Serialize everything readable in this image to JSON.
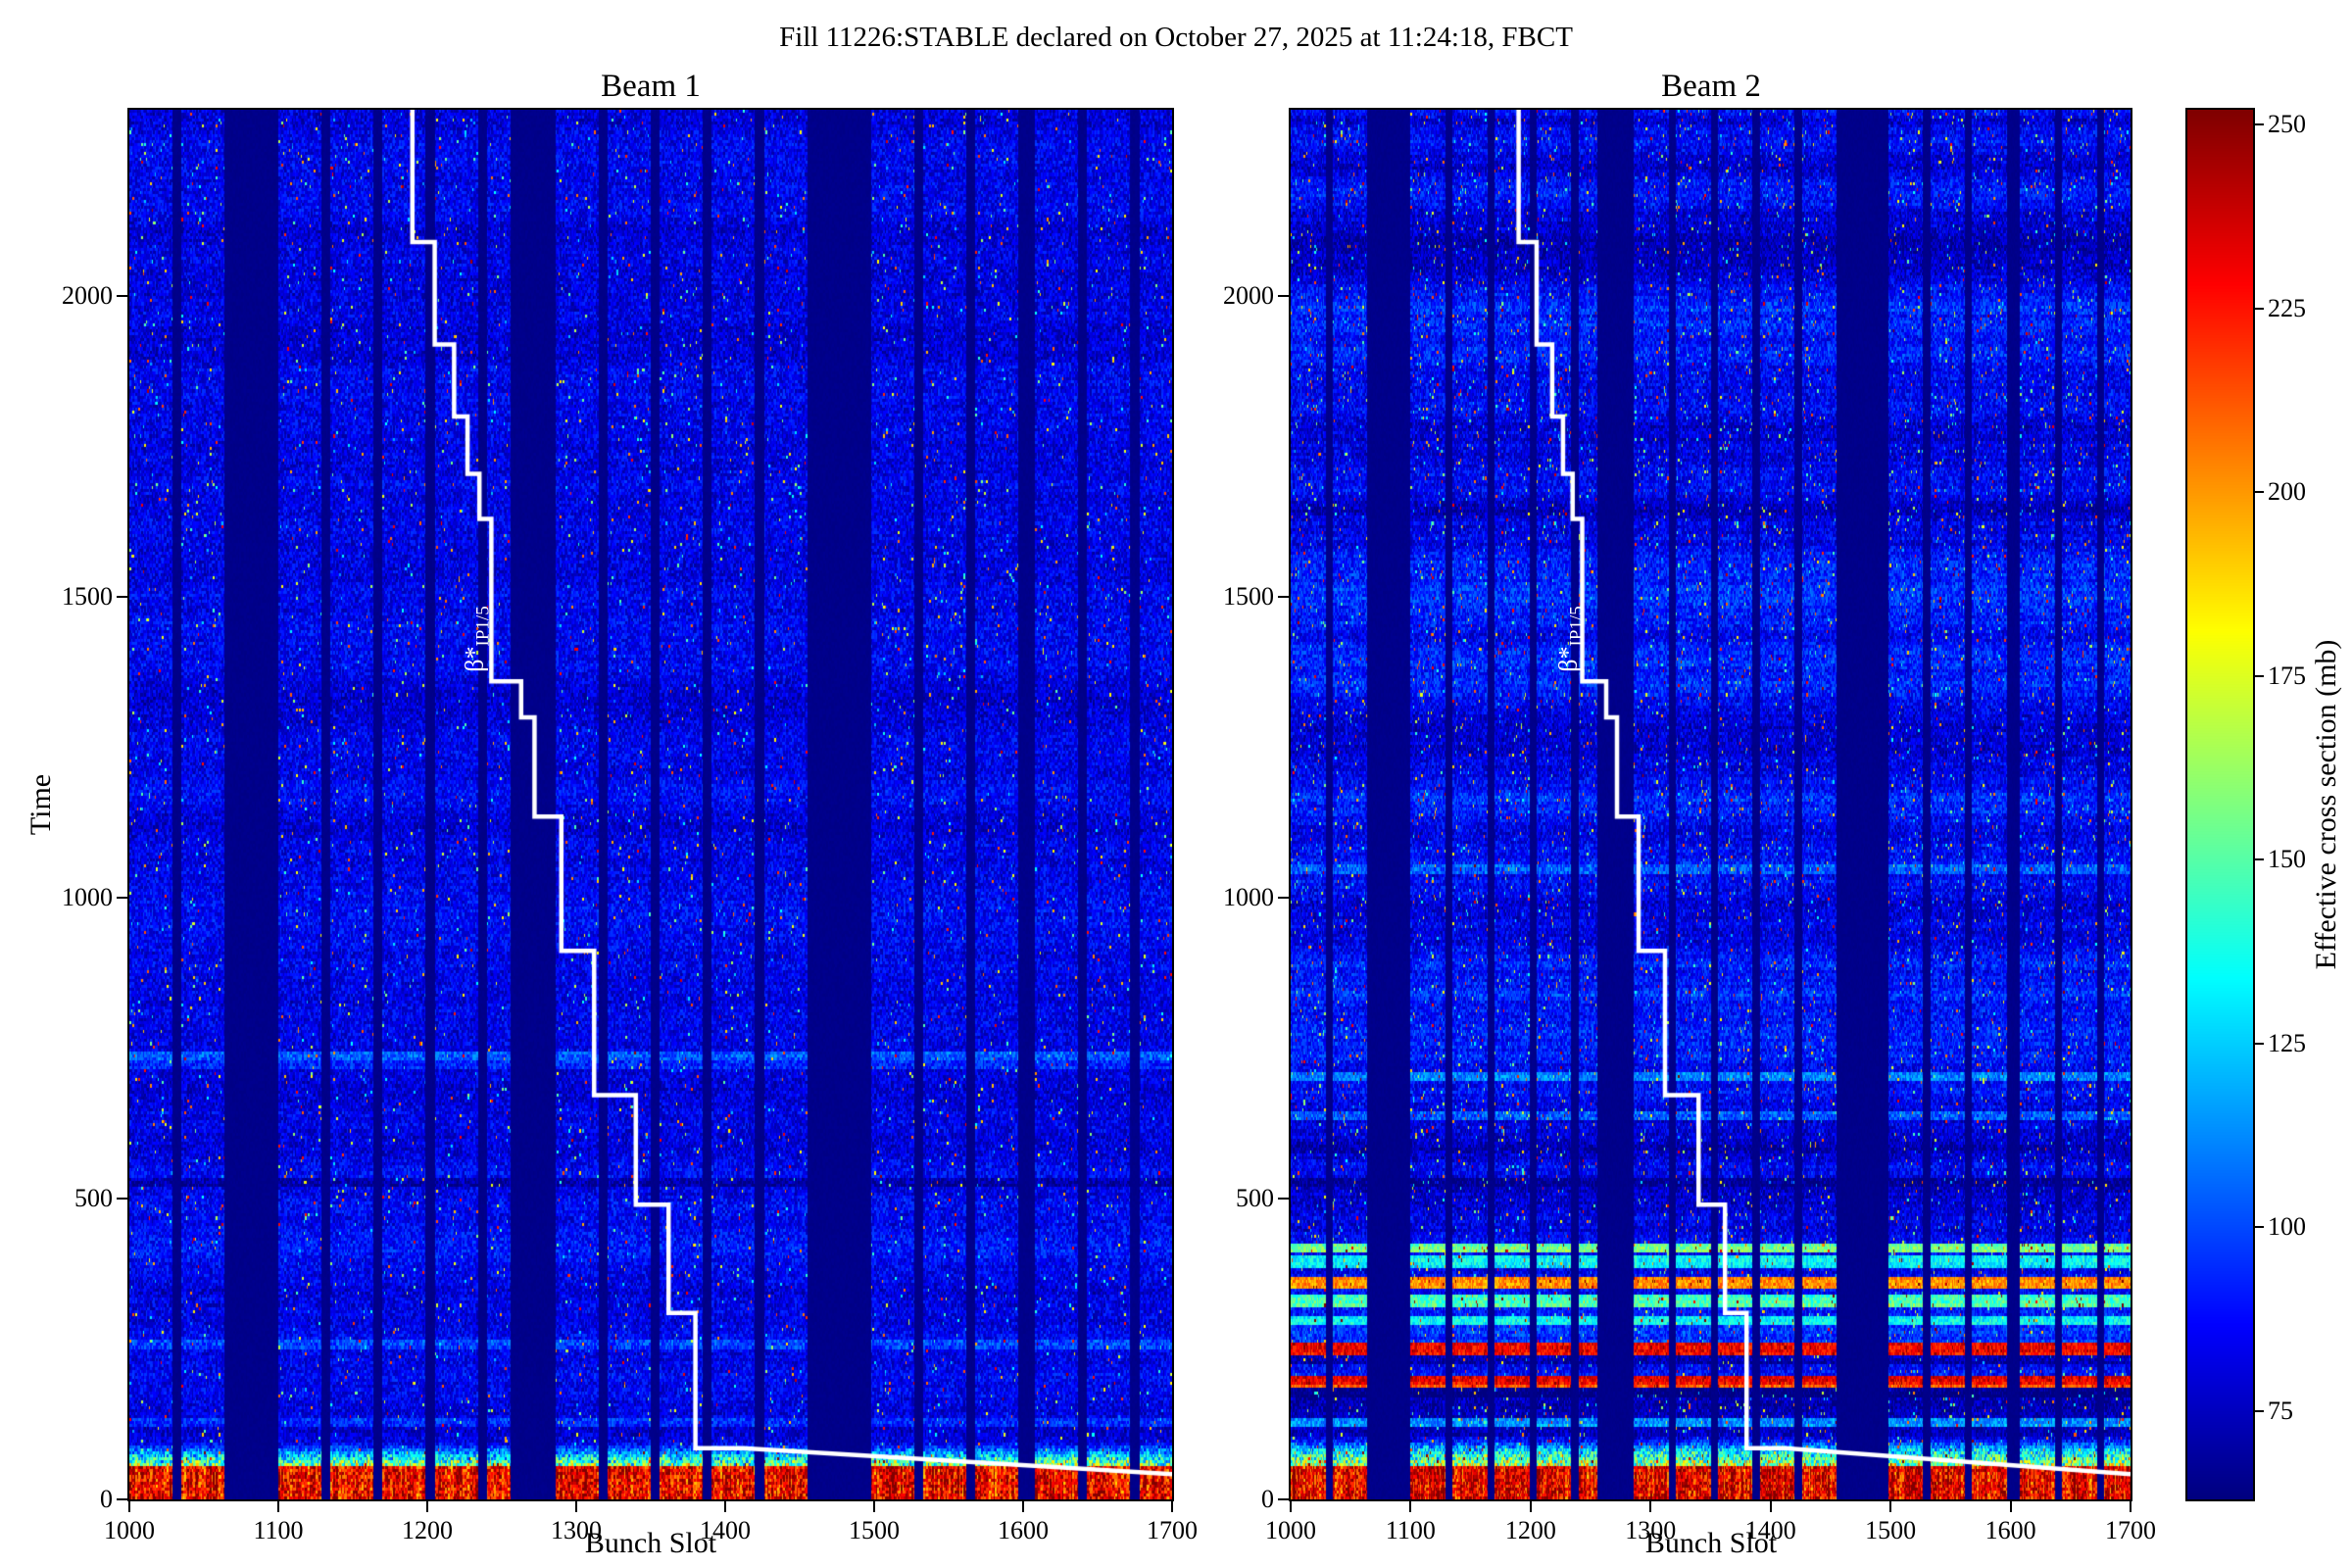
{
  "figure": {
    "title": "Fill 11226:STABLE declared on October 27, 2025 at 11:24:18, FBCT"
  },
  "colorbar": {
    "label": "Effective cross section (mb)",
    "ticks": [
      75,
      100,
      125,
      150,
      175,
      200,
      225,
      250
    ],
    "range": [
      63,
      252
    ],
    "colormap": "jet"
  },
  "chart_data": [
    {
      "type": "heatmap",
      "title": "Beam 1",
      "xlabel": "Bunch Slot",
      "ylabel": "Time",
      "xlim": [
        1000,
        1700
      ],
      "ylim": [
        0,
        2310
      ],
      "xticks": [
        1000,
        1100,
        1200,
        1300,
        1400,
        1500,
        1600,
        1700
      ],
      "yticks": [
        0,
        500,
        1000,
        1500,
        2000
      ],
      "value_range": [
        63,
        252
      ],
      "background_value": 64,
      "base_value": 82,
      "noise_amplitude": 14,
      "speck_probability": 0.018,
      "row_noise": 4,
      "hot_band": {
        "time_max": 55,
        "value": 230,
        "noise": 26,
        "fringe": 40
      },
      "bunch_trains": [
        [
          1000,
          1029
        ],
        [
          1035,
          1064
        ],
        [
          1100,
          1129
        ],
        [
          1135,
          1164
        ],
        [
          1170,
          1199
        ],
        [
          1205,
          1234
        ],
        [
          1240,
          1256
        ],
        [
          1286,
          1315
        ],
        [
          1321,
          1350
        ],
        [
          1356,
          1385
        ],
        [
          1391,
          1420
        ],
        [
          1426,
          1455
        ],
        [
          1498,
          1527
        ],
        [
          1533,
          1562
        ],
        [
          1568,
          1597
        ],
        [
          1608,
          1637
        ],
        [
          1643,
          1672
        ],
        [
          1678,
          1700
        ]
      ],
      "row_streaks": [
        {
          "time": 530,
          "delta": -14,
          "width": 8
        },
        {
          "time": 740,
          "delta": 20,
          "width": 10
        },
        {
          "time": 725,
          "delta": 12,
          "width": 6
        },
        {
          "time": 260,
          "delta": 14,
          "width": 6
        },
        {
          "time": 130,
          "delta": 15,
          "width": 6
        }
      ],
      "beta_line": {
        "label_main": "β*",
        "label_sub": "IP1/5",
        "color": "#ffffff",
        "points": [
          [
            1190,
            2310
          ],
          [
            1190,
            2090
          ],
          [
            1205,
            2090
          ],
          [
            1205,
            1920
          ],
          [
            1218,
            1920
          ],
          [
            1218,
            1800
          ],
          [
            1227,
            1800
          ],
          [
            1227,
            1705
          ],
          [
            1235,
            1705
          ],
          [
            1235,
            1630
          ],
          [
            1243,
            1630
          ],
          [
            1243,
            1360
          ],
          [
            1263,
            1360
          ],
          [
            1263,
            1300
          ],
          [
            1272,
            1300
          ],
          [
            1272,
            1135
          ],
          [
            1290,
            1135
          ],
          [
            1290,
            912
          ],
          [
            1312,
            912
          ],
          [
            1312,
            672
          ],
          [
            1340,
            672
          ],
          [
            1340,
            490
          ],
          [
            1362,
            490
          ],
          [
            1362,
            310
          ],
          [
            1380,
            310
          ],
          [
            1380,
            85
          ],
          [
            1412,
            85
          ],
          [
            1700,
            42
          ]
        ]
      },
      "seed": 42
    },
    {
      "type": "heatmap",
      "title": "Beam 2",
      "xlabel": "Bunch Slot",
      "ylabel": "",
      "xlim": [
        1000,
        1700
      ],
      "ylim": [
        0,
        2310
      ],
      "xticks": [
        1000,
        1100,
        1200,
        1300,
        1400,
        1500,
        1600,
        1700
      ],
      "yticks": [
        0,
        500,
        1000,
        1500,
        2000
      ],
      "value_range": [
        63,
        252
      ],
      "background_value": 64,
      "base_value": 84,
      "noise_amplitude": 15,
      "speck_probability": 0.028,
      "row_noise": 9,
      "hot_band": {
        "time_max": 55,
        "value": 232,
        "noise": 26,
        "fringe": 55
      },
      "bunch_trains": [
        [
          1000,
          1029
        ],
        [
          1035,
          1064
        ],
        [
          1100,
          1129
        ],
        [
          1135,
          1164
        ],
        [
          1170,
          1199
        ],
        [
          1205,
          1234
        ],
        [
          1240,
          1256
        ],
        [
          1286,
          1315
        ],
        [
          1321,
          1350
        ],
        [
          1356,
          1385
        ],
        [
          1391,
          1420
        ],
        [
          1426,
          1455
        ],
        [
          1498,
          1527
        ],
        [
          1533,
          1562
        ],
        [
          1568,
          1597
        ],
        [
          1608,
          1637
        ],
        [
          1643,
          1672
        ],
        [
          1678,
          1700
        ]
      ],
      "row_streaks": [
        {
          "time": 420,
          "delta": 70,
          "width": 7
        },
        {
          "time": 396,
          "delta": 45,
          "width": 6
        },
        {
          "time": 362,
          "delta": 115,
          "width": 7
        },
        {
          "time": 331,
          "delta": 60,
          "width": 6
        },
        {
          "time": 300,
          "delta": 45,
          "width": 6
        },
        {
          "time": 252,
          "delta": 135,
          "width": 8
        },
        {
          "time": 235,
          "delta": -14,
          "width": 6
        },
        {
          "time": 198,
          "delta": 145,
          "width": 8
        },
        {
          "time": 182,
          "delta": -14,
          "width": 6
        },
        {
          "time": 705,
          "delta": 28,
          "width": 6
        },
        {
          "time": 640,
          "delta": 22,
          "width": 6
        },
        {
          "time": 530,
          "delta": -12,
          "width": 7
        },
        {
          "time": 1050,
          "delta": 16,
          "width": 6
        },
        {
          "time": 130,
          "delta": 40,
          "width": 6
        }
      ],
      "beta_line": {
        "label_main": "β*",
        "label_sub": "IP1/5",
        "color": "#ffffff",
        "points": [
          [
            1190,
            2310
          ],
          [
            1190,
            2090
          ],
          [
            1205,
            2090
          ],
          [
            1205,
            1920
          ],
          [
            1218,
            1920
          ],
          [
            1218,
            1800
          ],
          [
            1227,
            1800
          ],
          [
            1227,
            1705
          ],
          [
            1235,
            1705
          ],
          [
            1235,
            1630
          ],
          [
            1243,
            1630
          ],
          [
            1243,
            1360
          ],
          [
            1263,
            1360
          ],
          [
            1263,
            1300
          ],
          [
            1272,
            1300
          ],
          [
            1272,
            1135
          ],
          [
            1290,
            1135
          ],
          [
            1290,
            912
          ],
          [
            1312,
            912
          ],
          [
            1312,
            672
          ],
          [
            1340,
            672
          ],
          [
            1340,
            490
          ],
          [
            1362,
            490
          ],
          [
            1362,
            310
          ],
          [
            1380,
            310
          ],
          [
            1380,
            85
          ],
          [
            1412,
            85
          ],
          [
            1700,
            42
          ]
        ]
      },
      "seed": 7
    }
  ]
}
